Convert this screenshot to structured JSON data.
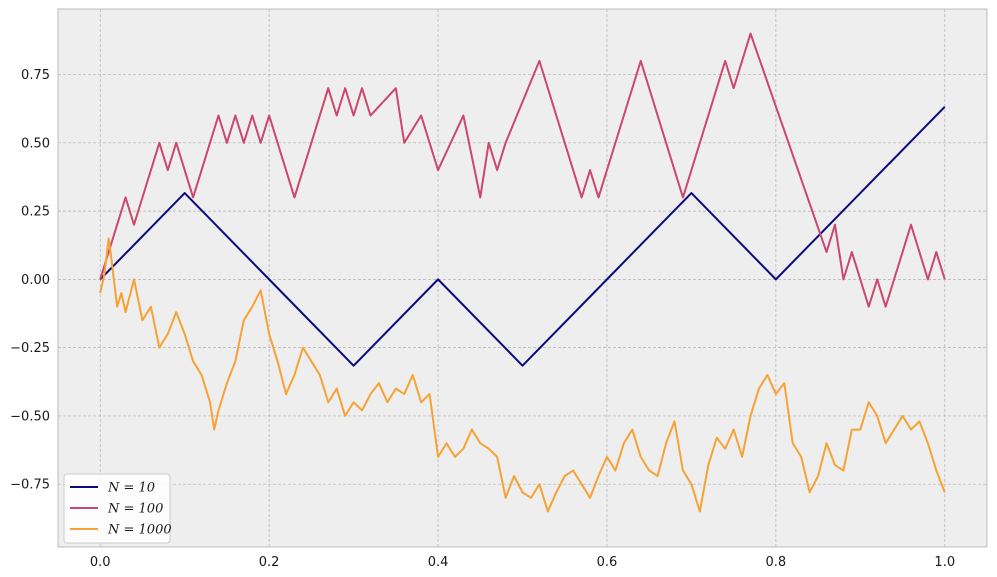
{
  "chart_data": {
    "type": "line",
    "title": "",
    "xlabel": "",
    "ylabel": "",
    "xlim": [
      -0.05,
      1.05
    ],
    "ylim": [
      -0.98,
      0.99
    ],
    "grid": true,
    "legend_position": "lower-left",
    "x_ticks": [
      0.0,
      0.2,
      0.4,
      0.6,
      0.8,
      1.0
    ],
    "x_tick_labels": [
      "0.0",
      "0.2",
      "0.4",
      "0.6",
      "0.8",
      "1.0"
    ],
    "y_ticks": [
      0.75,
      0.5,
      0.25,
      0.0,
      -0.25,
      -0.5,
      -0.75
    ],
    "y_tick_labels": [
      "0.75",
      "0.50",
      "0.25",
      "0.00",
      "−0.25",
      "−0.50",
      "−0.75"
    ],
    "series": [
      {
        "name": "N = 10",
        "color": "#0c0b7d",
        "x": [
          0,
          0.1,
          0.2,
          0.3,
          0.4,
          0.5,
          0.6,
          0.7,
          0.8,
          0.9,
          1.0
        ],
        "y": [
          0,
          0.316,
          0,
          -0.316,
          0,
          -0.316,
          0,
          0.316,
          0,
          0.316,
          0.632
        ]
      },
      {
        "name": "N = 100",
        "color": "#cb4770",
        "x": [
          0,
          0.03,
          0.04,
          0.07,
          0.08,
          0.09,
          0.11,
          0.14,
          0.15,
          0.16,
          0.17,
          0.18,
          0.19,
          0.2,
          0.23,
          0.27,
          0.28,
          0.29,
          0.3,
          0.31,
          0.32,
          0.35,
          0.36,
          0.38,
          0.4,
          0.43,
          0.45,
          0.46,
          0.47,
          0.48,
          0.52,
          0.57,
          0.58,
          0.59,
          0.64,
          0.69,
          0.74,
          0.75,
          0.77,
          0.86,
          0.87,
          0.88,
          0.89,
          0.91,
          0.92,
          0.93,
          0.96,
          0.98,
          0.99,
          1.0
        ],
        "y": [
          0,
          0.3,
          0.2,
          0.5,
          0.4,
          0.5,
          0.3,
          0.6,
          0.5,
          0.6,
          0.5,
          0.6,
          0.5,
          0.6,
          0.3,
          0.7,
          0.6,
          0.7,
          0.6,
          0.7,
          0.6,
          0.7,
          0.5,
          0.6,
          0.4,
          0.6,
          0.3,
          0.5,
          0.4,
          0.5,
          0.8,
          0.3,
          0.4,
          0.3,
          0.8,
          0.3,
          0.8,
          0.7,
          0.9,
          0.1,
          0.2,
          0.0,
          0.1,
          -0.1,
          0.0,
          -0.1,
          0.2,
          0.0,
          0.1,
          0.0
        ]
      },
      {
        "name": "N = 1000",
        "color": "#f7a235",
        "x": [
          0,
          0.005,
          0.01,
          0.013,
          0.02,
          0.025,
          0.03,
          0.04,
          0.05,
          0.06,
          0.07,
          0.08,
          0.09,
          0.1,
          0.11,
          0.12,
          0.13,
          0.135,
          0.14,
          0.15,
          0.16,
          0.17,
          0.18,
          0.19,
          0.2,
          0.21,
          0.22,
          0.23,
          0.24,
          0.25,
          0.26,
          0.27,
          0.28,
          0.29,
          0.3,
          0.31,
          0.32,
          0.33,
          0.34,
          0.35,
          0.36,
          0.37,
          0.38,
          0.39,
          0.4,
          0.41,
          0.42,
          0.43,
          0.44,
          0.45,
          0.46,
          0.47,
          0.48,
          0.49,
          0.5,
          0.51,
          0.52,
          0.53,
          0.54,
          0.55,
          0.56,
          0.57,
          0.58,
          0.59,
          0.6,
          0.61,
          0.62,
          0.63,
          0.64,
          0.65,
          0.66,
          0.67,
          0.68,
          0.69,
          0.7,
          0.71,
          0.72,
          0.73,
          0.74,
          0.75,
          0.76,
          0.77,
          0.78,
          0.79,
          0.8,
          0.81,
          0.82,
          0.83,
          0.84,
          0.85,
          0.86,
          0.87,
          0.88,
          0.89,
          0.9,
          0.91,
          0.92,
          0.93,
          0.94,
          0.95,
          0.96,
          0.97,
          0.98,
          0.99,
          1.0
        ],
        "y": [
          -0.05,
          0.02,
          0.15,
          0.08,
          -0.1,
          -0.05,
          -0.12,
          0.0,
          -0.15,
          -0.1,
          -0.25,
          -0.2,
          -0.12,
          -0.2,
          -0.3,
          -0.35,
          -0.45,
          -0.55,
          -0.48,
          -0.38,
          -0.3,
          -0.15,
          -0.1,
          -0.04,
          -0.2,
          -0.3,
          -0.42,
          -0.35,
          -0.25,
          -0.3,
          -0.35,
          -0.45,
          -0.4,
          -0.5,
          -0.45,
          -0.48,
          -0.42,
          -0.38,
          -0.45,
          -0.4,
          -0.42,
          -0.35,
          -0.45,
          -0.42,
          -0.65,
          -0.6,
          -0.65,
          -0.62,
          -0.55,
          -0.6,
          -0.62,
          -0.65,
          -0.8,
          -0.72,
          -0.78,
          -0.8,
          -0.75,
          -0.85,
          -0.78,
          -0.72,
          -0.7,
          -0.75,
          -0.8,
          -0.72,
          -0.65,
          -0.7,
          -0.6,
          -0.55,
          -0.65,
          -0.7,
          -0.72,
          -0.6,
          -0.52,
          -0.7,
          -0.75,
          -0.85,
          -0.68,
          -0.58,
          -0.62,
          -0.55,
          -0.65,
          -0.5,
          -0.4,
          -0.35,
          -0.42,
          -0.38,
          -0.6,
          -0.65,
          -0.78,
          -0.72,
          -0.6,
          -0.68,
          -0.7,
          -0.55,
          -0.55,
          -0.45,
          -0.5,
          -0.6,
          -0.55,
          -0.5,
          -0.55,
          -0.52,
          -0.6,
          -0.7,
          -0.78
        ]
      }
    ]
  }
}
